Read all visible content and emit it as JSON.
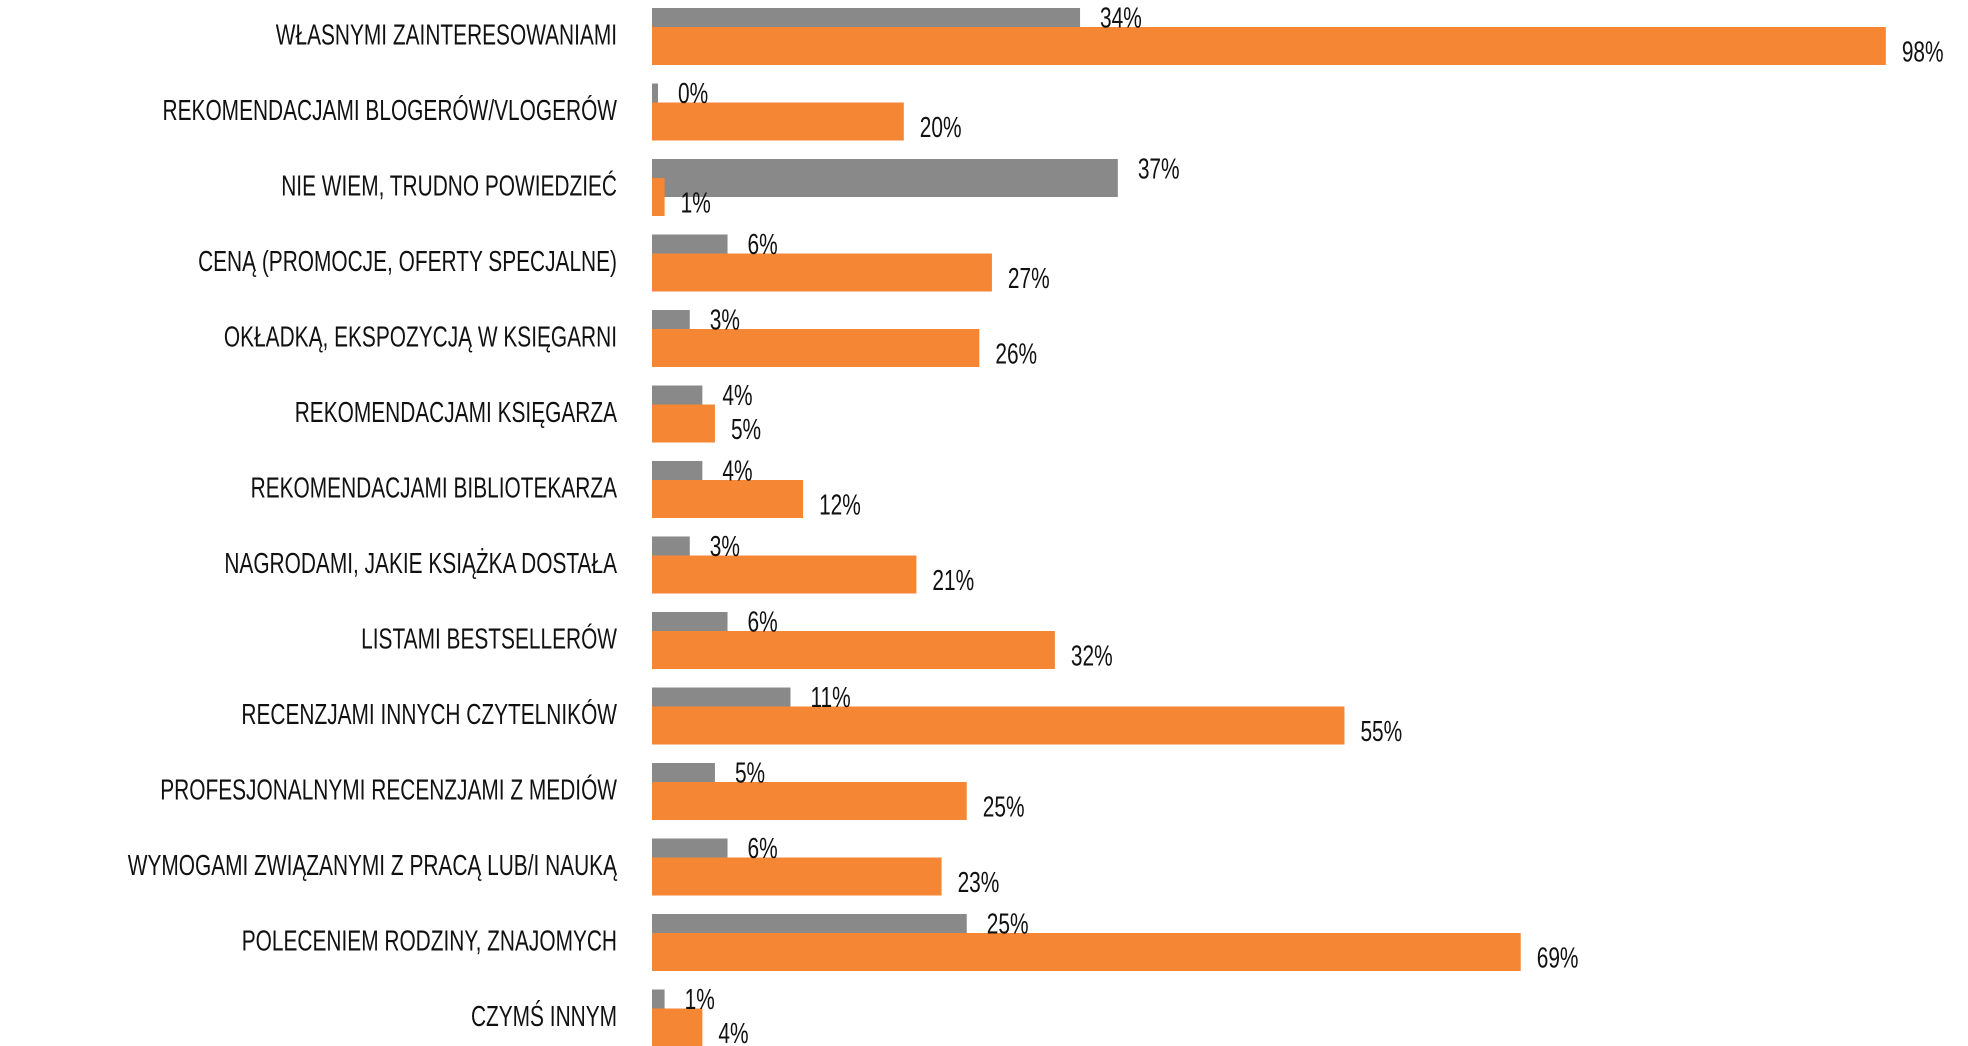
{
  "chart_data": {
    "type": "bar",
    "orientation": "horizontal",
    "categories": [
      "WŁASNYMI ZAINTERESOWANIAMI",
      "REKOMENDACJAMI BLOGERÓW/VLOGERÓW",
      "NIE WIEM, TRUDNO POWIEDZIEĆ",
      "CENĄ (PROMOCJE, OFERTY SPECJALNE)",
      "OKŁADKĄ, EKSPOZYCJĄ W KSIĘGARNI",
      "REKOMENDACJAMI KSIĘGARZA",
      "REKOMENDACJAMI BIBLIOTEKARZA",
      "NAGRODAMI, JAKIE KSIĄŻKA DOSTAŁA",
      "LISTAMI BESTSELLERÓW",
      "RECENZJAMI INNYCH CZYTELNIKÓW",
      "PROFESJONALNYMI RECENZJAMI Z MEDIÓW",
      "WYMOGAMI ZWIĄZANYMI Z PRACĄ LUB/I NAUKĄ",
      "POLECENIEM RODZINY, ZNAJOMYCH",
      "CZYMŚ INNYM"
    ],
    "series": [
      {
        "color": "#898989",
        "values": [
          34,
          0,
          37,
          6,
          3,
          4,
          4,
          3,
          6,
          11,
          5,
          6,
          25,
          1
        ],
        "value_labels": [
          "34%",
          "0%",
          "37%",
          "6%",
          "3%",
          "4%",
          "4%",
          "3%",
          "6%",
          "11%",
          "5%",
          "6%",
          "25%",
          "1%"
        ]
      },
      {
        "color": "#f58634",
        "values": [
          98,
          20,
          1,
          27,
          26,
          5,
          12,
          21,
          32,
          55,
          25,
          23,
          69,
          4
        ],
        "value_labels": [
          "98%",
          "20%",
          "1%",
          "27%",
          "26%",
          "5%",
          "12%",
          "21%",
          "32%",
          "55%",
          "25%",
          "23%",
          "69%",
          "4%"
        ]
      }
    ],
    "xlim": [
      0,
      100
    ]
  }
}
